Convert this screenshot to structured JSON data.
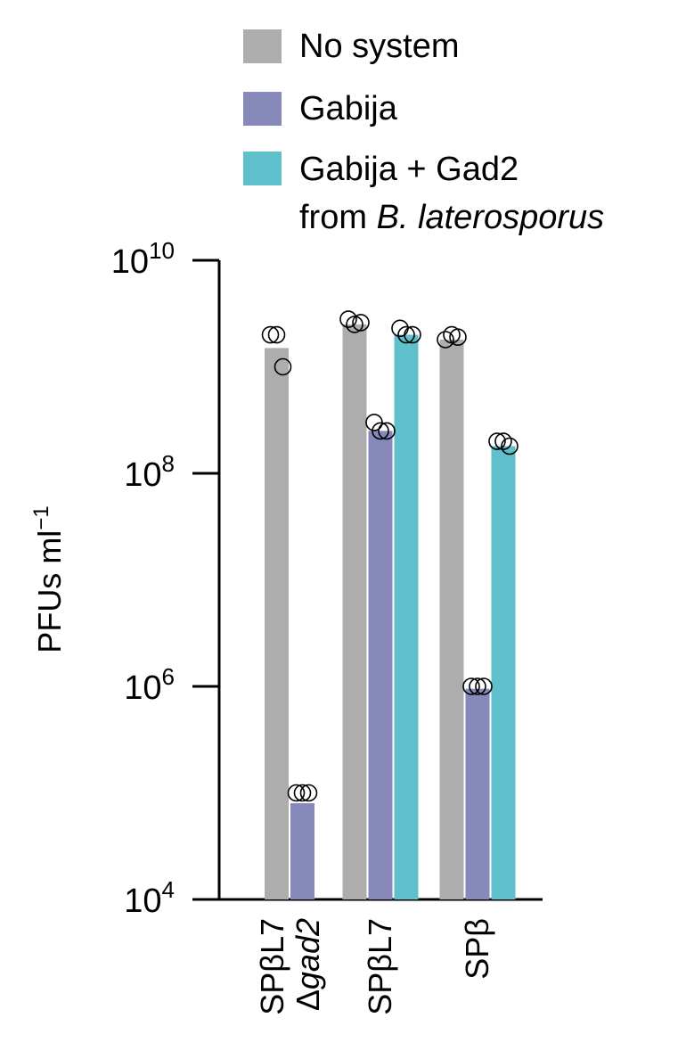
{
  "chart_data": {
    "type": "bar",
    "yscale": "log",
    "ylim": [
      10000,
      10000000000
    ],
    "ylabel": "PFUs ml",
    "ylabel_sup": "−1",
    "yticks": [
      {
        "value": 10000,
        "base": "10",
        "exp": "4"
      },
      {
        "value": 1000000,
        "base": "10",
        "exp": "6"
      },
      {
        "value": 100000000,
        "base": "10",
        "exp": "8"
      },
      {
        "value": 10000000000,
        "base": "10",
        "exp": "10"
      }
    ],
    "legend": {
      "position": "top",
      "entries": [
        {
          "label": "No system",
          "color": "#adadad"
        },
        {
          "label": "Gabija",
          "color": "#8689b9"
        },
        {
          "label_line1": "Gabija + Gad2",
          "label_line2_prefix": "from ",
          "label_line2_italic": "B. laterosporus",
          "color": "#5fbfca"
        }
      ]
    },
    "series": [
      {
        "name": "No system",
        "color": "#adadad"
      },
      {
        "name": "Gabija",
        "color": "#8689b9"
      },
      {
        "name": "Gabija + Gad2 from B. laterosporus",
        "color": "#5fbfca"
      }
    ],
    "groups": [
      {
        "label_line1": "SPβL7",
        "label_line2_prefix": "Δ",
        "label_line2_italic": "gad2",
        "bars": [
          {
            "series": 0,
            "value": 1500000000,
            "points": [
              2000000000,
              2000000000,
              1000000000
            ]
          },
          {
            "series": 1,
            "value": 80000,
            "points": [
              100000,
              100000,
              100000
            ]
          }
        ]
      },
      {
        "label_line1": "SPβL7",
        "bars": [
          {
            "series": 0,
            "value": 2500000000,
            "points": [
              2800000000,
              2500000000,
              2600000000
            ]
          },
          {
            "series": 1,
            "value": 250000000,
            "points": [
              300000000,
              250000000,
              250000000
            ]
          },
          {
            "series": 2,
            "value": 2000000000,
            "points": [
              2300000000,
              2000000000,
              2000000000
            ]
          }
        ]
      },
      {
        "label_line1": "SPβ",
        "bars": [
          {
            "series": 0,
            "value": 1800000000,
            "points": [
              1800000000,
              2000000000,
              1900000000
            ]
          },
          {
            "series": 1,
            "value": 950000,
            "points": [
              1000000,
              1000000,
              1000000
            ]
          },
          {
            "series": 2,
            "value": 180000000,
            "points": [
              200000000,
              200000000,
              180000000
            ]
          }
        ]
      }
    ]
  }
}
